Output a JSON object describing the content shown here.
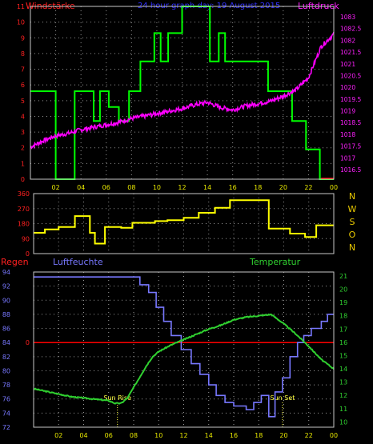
{
  "colors": {
    "background": "#000000",
    "frame": "#c8c8c8",
    "grid": "#9a9a9a",
    "axis_left": "#ff2020",
    "axis_right": "#ff20ff",
    "x_tick": "#e8e800",
    "wind_direction": "#ffff00",
    "compass": "#e8c800",
    "wind_speed": "#00ff00",
    "pressure": "#ff00ff",
    "rain": "#ff0000",
    "humidity": "#7878ff",
    "temperature": "#30d030",
    "sun_text": "#ffff40"
  },
  "chart_data": [
    {
      "type": "line",
      "panel": "top",
      "title": "24 hour graph day: 19 August 2015",
      "ylabel_left": "Windstärke",
      "ylabel_right": "Luftdruck",
      "x_ticks": [
        "02",
        "04",
        "06",
        "08",
        "10",
        "12",
        "14",
        "16",
        "18",
        "20",
        "22",
        "00"
      ],
      "xlim": [
        0,
        24
      ],
      "ylim_left": [
        0,
        11
      ],
      "ylim_right": [
        1016.0,
        1083.3
      ],
      "y_ticks_left": [
        "0",
        "1",
        "2",
        "3",
        "4",
        "5",
        "6",
        "7",
        "8",
        "9",
        "10",
        "11"
      ],
      "y_ticks_right": [
        "1016.5",
        "1017",
        "1017.5",
        "1018",
        "1018.5",
        "1019",
        "1019.5",
        "1020",
        "1020.5",
        "1021",
        "1021.5",
        "1082",
        "1082.5",
        "1083"
      ],
      "grid": true,
      "series": [
        {
          "axis": "left",
          "color": "#00ff00",
          "step": true,
          "x": [
            0,
            2.0,
            2.0,
            3.5,
            3.5,
            5.0,
            5.0,
            5.5,
            5.5,
            6.2,
            6.2,
            7.0,
            7.0,
            7.8,
            7.8,
            8.7,
            8.7,
            9.8,
            9.8,
            10.3,
            10.3,
            10.9,
            10.9,
            12.0,
            12.0,
            13.2,
            13.2,
            14.2,
            14.2,
            14.9,
            14.9,
            15.4,
            15.4,
            18.8,
            18.8,
            20.7,
            20.7,
            21.8,
            21.8,
            22.9,
            22.9,
            24
          ],
          "y": [
            5.6,
            5.6,
            0,
            0,
            5.6,
            5.6,
            3.7,
            3.7,
            5.6,
            5.6,
            4.6,
            4.6,
            3.7,
            3.7,
            5.6,
            5.6,
            7.5,
            7.5,
            9.3,
            9.3,
            7.5,
            7.5,
            9.3,
            9.3,
            11.2,
            11.2,
            12.2,
            12.2,
            7.5,
            7.5,
            9.3,
            9.3,
            7.5,
            7.5,
            5.6,
            5.6,
            3.7,
            3.7,
            1.9,
            1.9,
            0,
            0
          ]
        },
        {
          "axis": "right",
          "color": "#ff00ff",
          "step": false,
          "x": [
            0,
            1,
            2,
            3,
            4,
            5,
            6,
            7,
            8,
            9,
            10,
            11,
            12,
            13,
            14,
            15,
            16,
            17,
            18,
            19,
            20,
            21,
            22,
            23,
            24
          ],
          "y": [
            1017.4,
            1017.9,
            1018.3,
            1018.5,
            1018.8,
            1019.0,
            1019.2,
            1019.4,
            1019.7,
            1019.9,
            1020.1,
            1020.3,
            1020.5,
            1020.8,
            1021.0,
            1020.6,
            1020.4,
            1020.7,
            1020.9,
            1021.1,
            1021.5,
            1022.0,
            1023.0,
            1025.5,
            1026.5
          ]
        }
      ]
    },
    {
      "type": "line",
      "panel": "middle",
      "y_ticks": [
        "0",
        "90",
        "180",
        "270",
        "360"
      ],
      "ylim": [
        0,
        360
      ],
      "xlim": [
        0,
        24
      ],
      "compass_labels": [
        "N",
        "W",
        "S",
        "O",
        "N"
      ],
      "grid": true,
      "series": [
        {
          "color": "#ffff00",
          "step": true,
          "x": [
            0,
            0.9,
            0.9,
            2.0,
            2.0,
            3.3,
            3.3,
            4.5,
            4.5,
            4.9,
            4.9,
            5.7,
            5.7,
            7.0,
            7.0,
            7.9,
            7.9,
            9.7,
            9.7,
            10.7,
            10.7,
            12.0,
            12.0,
            13.2,
            13.2,
            14.5,
            14.5,
            15.7,
            15.7,
            18.8,
            18.8,
            20.5,
            20.5,
            21.7,
            21.7,
            22.6,
            22.6,
            24
          ],
          "y": [
            125,
            125,
            145,
            145,
            160,
            160,
            225,
            225,
            125,
            125,
            60,
            60,
            160,
            160,
            155,
            155,
            185,
            185,
            195,
            195,
            200,
            200,
            215,
            215,
            245,
            245,
            275,
            275,
            320,
            320,
            150,
            150,
            120,
            120,
            100,
            100,
            170,
            170
          ]
        }
      ]
    },
    {
      "type": "line",
      "panel": "bottom",
      "ylabel_left_1": "Regen",
      "ylabel_left_2": "Luftfeuchte",
      "ylabel_right": "Temperatur",
      "x_ticks": [
        "02",
        "04",
        "06",
        "08",
        "10",
        "12",
        "14",
        "16",
        "18",
        "20",
        "22",
        "00"
      ],
      "xlim": [
        0,
        24
      ],
      "ylim_humidity": [
        72.0,
        94.0
      ],
      "ylim_temperature": [
        9.6,
        21.3
      ],
      "y_ticks_humidity": [
        "72",
        "74",
        "76",
        "78",
        "80",
        "82",
        "84",
        "86",
        "88",
        "90",
        "92",
        "94"
      ],
      "y_ticks_temperature": [
        "10",
        "11",
        "12",
        "13",
        "14",
        "15",
        "16",
        "17",
        "18",
        "19",
        "20",
        "21"
      ],
      "rain_tick": "0",
      "rain_value_humidity_units": 84.0,
      "grid": true,
      "annotations": [
        {
          "text": "Sun Rise",
          "x": 6.7
        },
        {
          "text": "Sun Set",
          "x": 19.9
        }
      ],
      "series": [
        {
          "name": "rain",
          "color": "#ff0000",
          "x": [
            0,
            24
          ],
          "y": [
            84.0,
            84.0
          ]
        },
        {
          "name": "humidity",
          "color": "#7878ff",
          "step": true,
          "x": [
            0,
            8.5,
            8.5,
            9.2,
            9.2,
            9.8,
            9.8,
            10.4,
            10.4,
            11.0,
            11.0,
            11.8,
            11.8,
            12.6,
            12.6,
            13.3,
            13.3,
            14.0,
            14.0,
            14.6,
            14.6,
            15.3,
            15.3,
            16.0,
            16.0,
            17.0,
            17.0,
            17.6,
            17.6,
            18.2,
            18.2,
            18.8,
            18.8,
            19.3,
            19.3,
            19.9,
            19.9,
            20.5,
            20.5,
            21.1,
            21.1,
            21.6,
            21.6,
            22.2,
            22.2,
            23.0,
            23.0,
            23.5,
            23.5,
            24
          ],
          "y": [
            93.3,
            93.3,
            92.2,
            92.2,
            91.1,
            91.1,
            89.0,
            89.0,
            87.0,
            87.0,
            85.0,
            85.0,
            83.0,
            83.0,
            81.0,
            81.0,
            79.5,
            79.5,
            78.0,
            78.0,
            76.5,
            76.5,
            75.5,
            75.5,
            75.0,
            75.0,
            74.5,
            74.5,
            75.5,
            75.5,
            76.5,
            76.5,
            73.5,
            73.5,
            77.0,
            77.0,
            79.0,
            79.0,
            82.0,
            82.0,
            84.0,
            84.0,
            85.0,
            85.0,
            86.0,
            86.0,
            87.0,
            87.0,
            88.0,
            88.0
          ]
        },
        {
          "name": "temperature",
          "color": "#30d030",
          "x": [
            0,
            1,
            2,
            3,
            4,
            5,
            6,
            6.5,
            7,
            7.5,
            8,
            8.5,
            9,
            9.5,
            10,
            11,
            12,
            13,
            14,
            15,
            16,
            17,
            18,
            19,
            20,
            21,
            22,
            23,
            24
          ],
          "y": [
            12.5,
            12.3,
            12.1,
            11.9,
            11.8,
            11.7,
            11.6,
            11.4,
            11.4,
            11.8,
            12.6,
            13.4,
            14.2,
            14.9,
            15.3,
            15.8,
            16.2,
            16.6,
            17.0,
            17.3,
            17.7,
            17.9,
            18.0,
            18.1,
            17.4,
            16.6,
            15.7,
            14.7,
            14.0
          ]
        }
      ]
    }
  ]
}
